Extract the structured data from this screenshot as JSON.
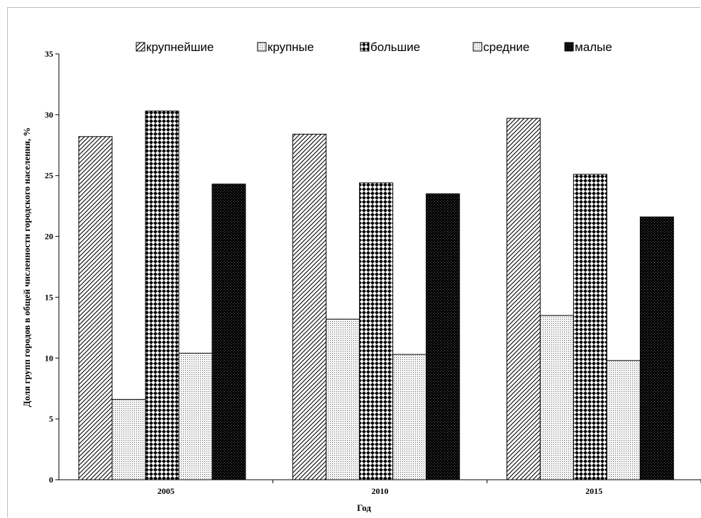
{
  "chart_data": {
    "type": "bar",
    "categories": [
      "2005",
      "2010",
      "2015"
    ],
    "series": [
      {
        "name": "крупнейшие",
        "values": [
          28.2,
          28.4,
          29.7
        ],
        "pattern": "diag"
      },
      {
        "name": "крупные",
        "values": [
          6.6,
          13.2,
          13.5
        ],
        "pattern": "dots"
      },
      {
        "name": "большие",
        "values": [
          30.3,
          24.4,
          25.1
        ],
        "pattern": "diamond"
      },
      {
        "name": "средние",
        "values": [
          10.4,
          10.3,
          9.8
        ],
        "pattern": "dots"
      },
      {
        "name": "малые",
        "values": [
          24.3,
          23.5,
          21.6
        ],
        "pattern": "dark"
      }
    ],
    "ylim": [
      0,
      35
    ],
    "yticks": [
      "0",
      "5",
      "10",
      "15",
      "20",
      "25",
      "30",
      "35"
    ],
    "xlabel": "Год",
    "ylabel": "Доля групп городов в общей численности городского населения, %",
    "legend_position": "top",
    "grid": false
  }
}
